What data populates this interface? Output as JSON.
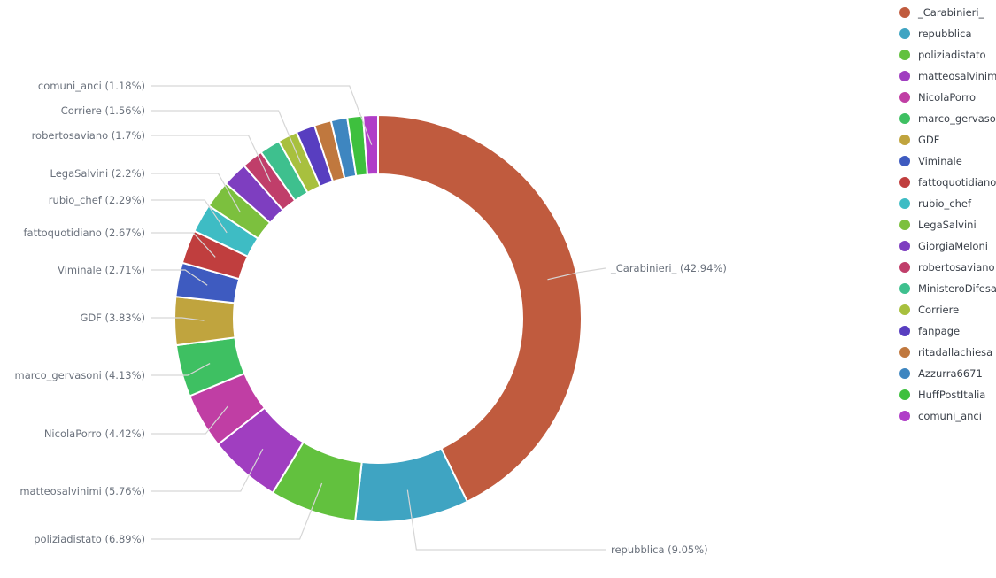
{
  "chart_data": {
    "type": "pie",
    "style": "donut",
    "legend_position": "right",
    "slices": [
      {
        "name": "_Carabinieri_",
        "label": "_Carabinieri_ (42.94%)",
        "value": 42.94,
        "color": "#c05b3e"
      },
      {
        "name": "repubblica",
        "label": "repubblica (9.05%)",
        "value": 9.05,
        "color": "#3fa4c2"
      },
      {
        "name": "poliziadistato",
        "label": "poliziadistato (6.89%)",
        "value": 6.89,
        "color": "#62c13e"
      },
      {
        "name": "matteosalvinimi",
        "label": "matteosalvinimi (5.76%)",
        "value": 5.76,
        "color": "#a03ec0"
      },
      {
        "name": "NicolaPorro",
        "label": "NicolaPorro (4.42%)",
        "value": 4.42,
        "color": "#c03ea4"
      },
      {
        "name": "marco_gervasoni",
        "label": "marco_gervasoni (4.13%)",
        "value": 4.13,
        "color": "#3ec062"
      },
      {
        "name": "GDF",
        "label": "GDF (3.83%)",
        "value": 3.83,
        "color": "#c0a43e"
      },
      {
        "name": "Viminale",
        "label": "Viminale (2.71%)",
        "value": 2.71,
        "color": "#3e5bc0"
      },
      {
        "name": "fattoquotidiano",
        "label": "fattoquotidiano (2.67%)",
        "value": 2.67,
        "color": "#c03e3e"
      },
      {
        "name": "rubio_chef",
        "label": "rubio_chef (2.29%)",
        "value": 2.29,
        "color": "#3ebcc4"
      },
      {
        "name": "LegaSalvini",
        "label": "LegaSalvini (2.2%)",
        "value": 2.2,
        "color": "#7cc03e"
      },
      {
        "name": "GiorgiaMeloni",
        "label": "",
        "value": 2.0,
        "color": "#7e3ec0"
      },
      {
        "name": "robertosaviano",
        "label": "robertosaviano (1.7%)",
        "value": 1.7,
        "color": "#c03e6a"
      },
      {
        "name": "MinisteroDifesa",
        "label": "",
        "value": 1.65,
        "color": "#3ec08e"
      },
      {
        "name": "Corriere",
        "label": "Corriere (1.56%)",
        "value": 1.56,
        "color": "#a8c03e"
      },
      {
        "name": "fanpage",
        "label": "",
        "value": 1.5,
        "color": "#583ec0"
      },
      {
        "name": "ritadallachiesa",
        "label": "",
        "value": 1.35,
        "color": "#c0783e"
      },
      {
        "name": "Azzurra6671",
        "label": "",
        "value": 1.3,
        "color": "#3e86c0"
      },
      {
        "name": "HuffPostItalia",
        "label": "",
        "value": 1.25,
        "color": "#3ec03e"
      },
      {
        "name": "comuni_anci",
        "label": "comuni_anci (1.18%)",
        "value": 1.18,
        "color": "#b03ec8"
      }
    ]
  }
}
